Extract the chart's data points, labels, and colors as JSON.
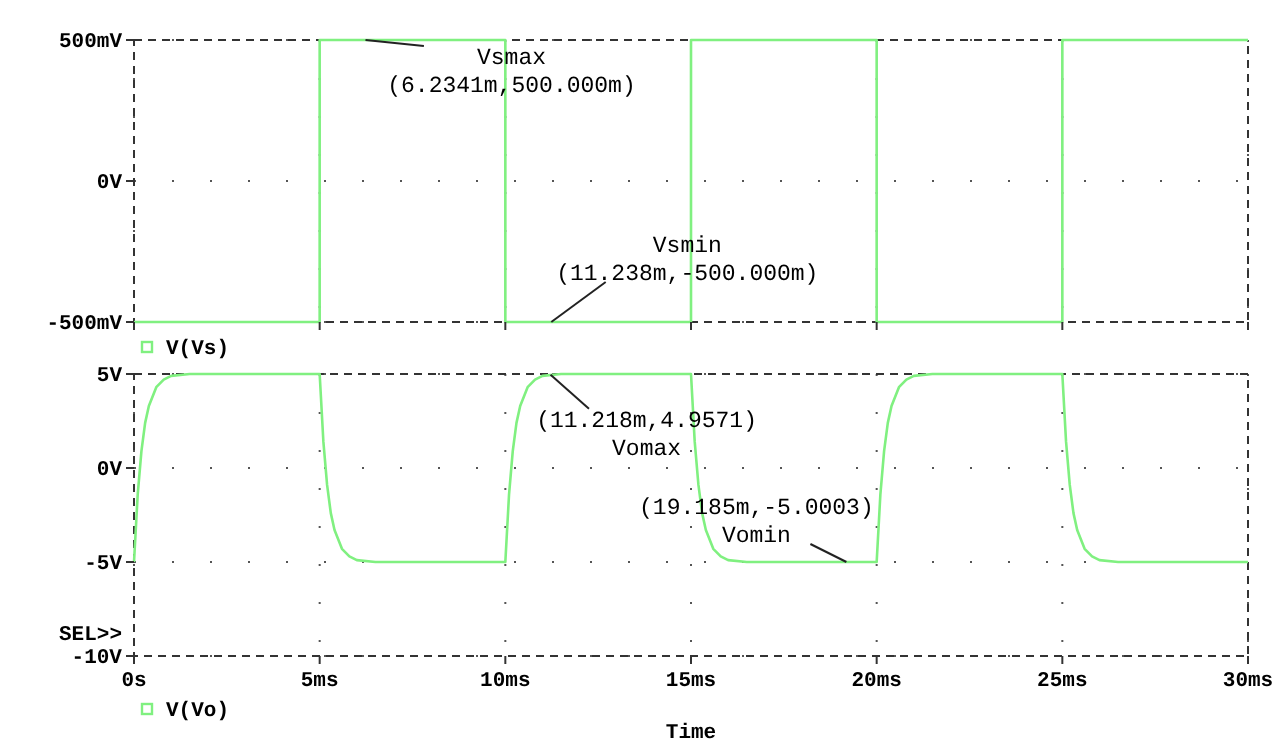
{
  "chart_data": [
    {
      "type": "line",
      "xlim": [
        0,
        30
      ],
      "xticks": [
        {
          "value": 0,
          "label": null
        },
        {
          "value": 5,
          "label": null
        },
        {
          "value": 10,
          "label": null
        },
        {
          "value": 15,
          "label": null
        },
        {
          "value": 20,
          "label": null
        },
        {
          "value": 25,
          "label": null
        },
        {
          "value": 30,
          "label": null
        }
      ],
      "ylim": [
        -500,
        500
      ],
      "yticks": [
        {
          "value": -500,
          "label": "-500mV"
        },
        {
          "value": 0,
          "label": "0V"
        },
        {
          "value": 500,
          "label": "500mV"
        }
      ],
      "tick_labels": "y",
      "grid": true,
      "legend": "bottom left",
      "series": [
        {
          "name": "V(Vs)",
          "color": "#80f080",
          "x": [
            0,
            5,
            5,
            10,
            10,
            15,
            15,
            20,
            20,
            25,
            25,
            30
          ],
          "values": [
            -500,
            -500,
            500,
            500,
            -500,
            -500,
            500,
            500,
            -500,
            -500,
            500,
            500
          ]
        }
      ],
      "annotations": [
        {
          "text": "Vsmax\n(6.2341m,500.000m)",
          "x": 6.2341,
          "y": 500
        },
        {
          "text": "Vsmin\n(11.238m,-500.000m)",
          "x": 11.238,
          "y": -500
        }
      ]
    },
    {
      "type": "line",
      "xlabel": "Time",
      "xlim": [
        0,
        30
      ],
      "xticks": [
        {
          "value": 0,
          "label": "0s"
        },
        {
          "value": 5,
          "label": "5ms"
        },
        {
          "value": 10,
          "label": "10ms"
        },
        {
          "value": 15,
          "label": "15ms"
        },
        {
          "value": 20,
          "label": "20ms"
        },
        {
          "value": 25,
          "label": "25ms"
        },
        {
          "value": 30,
          "label": "30ms"
        }
      ],
      "ylim": [
        -10,
        5
      ],
      "yticks": [
        {
          "value": -10,
          "label": "-10V"
        },
        {
          "value": -5,
          "label": "-5V"
        },
        {
          "value": 0,
          "label": "0V"
        },
        {
          "value": 5,
          "label": "5V"
        }
      ],
      "grid": true,
      "legend": "bottom left",
      "series": [
        {
          "name": "V(Vo)",
          "color": "#80f080",
          "x": [
            0,
            0.1,
            0.2,
            0.3,
            0.4,
            0.6,
            0.8,
            1,
            1.5,
            5,
            5.1,
            5.2,
            5.3,
            5.4,
            5.6,
            5.8,
            6,
            6.5,
            10,
            10.1,
            10.2,
            10.3,
            10.4,
            10.6,
            10.8,
            11,
            11.5,
            15,
            15.1,
            15.2,
            15.3,
            15.4,
            15.6,
            15.8,
            16,
            16.5,
            20,
            20.1,
            20.2,
            20.3,
            20.4,
            20.6,
            20.8,
            21,
            21.5,
            25,
            25.1,
            25.2,
            25.3,
            25.4,
            25.6,
            25.8,
            26,
            26.5,
            30
          ],
          "values": [
            -5,
            -1.4,
            0.9,
            2.4,
            3.3,
            4.3,
            4.7,
            4.9,
            5,
            5,
            1.4,
            -0.9,
            -2.4,
            -3.3,
            -4.3,
            -4.7,
            -4.9,
            -5,
            -5,
            -1.4,
            0.9,
            2.4,
            3.3,
            4.3,
            4.7,
            4.9,
            5,
            5,
            1.4,
            -0.9,
            -2.4,
            -3.3,
            -4.3,
            -4.7,
            -4.9,
            -5,
            -5,
            -1.4,
            0.9,
            2.4,
            3.3,
            4.3,
            4.7,
            4.9,
            5,
            5,
            1.4,
            -0.9,
            -2.4,
            -3.3,
            -4.3,
            -4.7,
            -4.9,
            -5,
            -5
          ]
        }
      ],
      "annotations": [
        {
          "text": "(11.218m,4.9571)\nVomax",
          "x": 11.218,
          "y": 4.9571
        },
        {
          "text": "(19.185m,-5.0003)\nVomin",
          "x": 19.185,
          "y": -5.0003
        },
        "SEL>>"
      ]
    }
  ]
}
